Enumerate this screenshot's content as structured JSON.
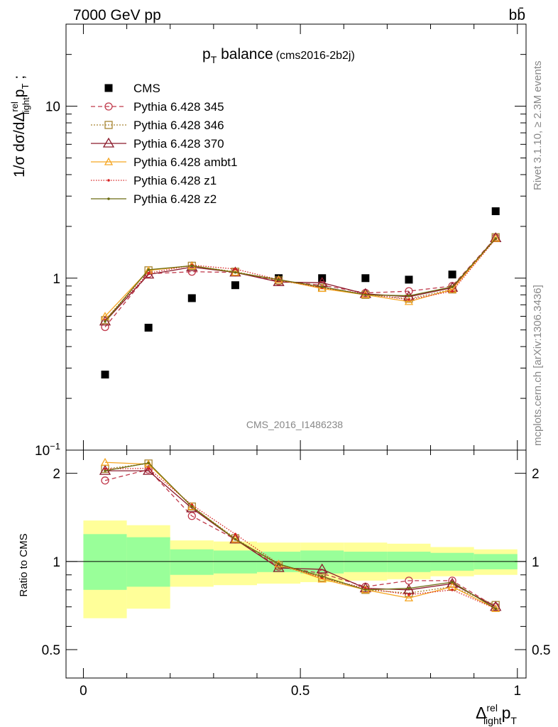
{
  "header": {
    "energy_label": "7000 GeV pp",
    "process_label": "bb̄",
    "right_side_rivet": "Rivet 3.1.10, ≥ 2.3M events",
    "right_side_mcplots": "mcplots.cern.ch [arXiv:1306.3436]"
  },
  "plot": {
    "title_main": "p",
    "title_sub": "T",
    "title_rest": " balance",
    "title_tag": "(cms2016-2b2j)",
    "watermark": "CMS_2016_I1486238",
    "ylabel_main": "1/σ dσ/dΔ",
    "ylabel_sup": "rel",
    "ylabel_sub": "light",
    "ylabel_tail": "p",
    "ylabel_tail_sub": "T",
    "ylabel_end": " ;",
    "ratio_ylabel": "Ratio to CMS",
    "xlabel_main": "Δ",
    "xlabel_sup": "rel",
    "xlabel_sub": "light",
    "xlabel_tail": "p",
    "xlabel_tail_sub": "T"
  },
  "colors": {
    "CMS": "#000000",
    "p345": "#c0394b",
    "p346": "#a88532",
    "p370": "#8b1a2b",
    "ambt1": "#f5a623",
    "z1": "#d62020",
    "z2": "#6b6b10",
    "band_inner": "#99ff99",
    "band_outer": "#ffff99"
  },
  "chart_data": {
    "type": "line",
    "x": [
      0.05,
      0.15,
      0.25,
      0.35,
      0.45,
      0.55,
      0.65,
      0.75,
      0.85,
      0.95
    ],
    "xlim": [
      -0.04,
      1.02
    ],
    "main_ylim": [
      0.1,
      30
    ],
    "main_yscale": "log",
    "main_yticks": [
      {
        "label": "10",
        "sup": "−1",
        "value": 0.1
      },
      {
        "label": "1",
        "sup": "",
        "value": 1
      },
      {
        "label": "10",
        "sup": "",
        "value": 10
      }
    ],
    "ratio_ylim": [
      0.4,
      2.4
    ],
    "ratio_yscale": "log",
    "ratio_yticks": [
      {
        "label": "0.5",
        "value": 0.5
      },
      {
        "label": "1",
        "value": 1
      },
      {
        "label": "2",
        "value": 2
      }
    ],
    "xticks": [
      {
        "label": "0",
        "value": 0
      },
      {
        "label": "0.5",
        "value": 0.5
      },
      {
        "label": "1",
        "value": 1
      }
    ],
    "legend_position": "top-left",
    "series": [
      {
        "key": "CMS",
        "name": "CMS",
        "marker": "square",
        "dash": "",
        "values": [
          0.275,
          0.515,
          0.765,
          0.91,
          1.0,
          1.0,
          1.0,
          0.98,
          1.05,
          2.45
        ]
      },
      {
        "key": "p345",
        "name": "Pythia 6.428 345",
        "marker": "circle",
        "dash": "6,4",
        "values": [
          0.52,
          1.06,
          1.09,
          1.08,
          0.96,
          0.91,
          0.82,
          0.84,
          0.9,
          1.72
        ]
      },
      {
        "key": "p346",
        "name": "Pythia 6.428 346",
        "marker": "square-open",
        "dash": "2,2",
        "values": [
          0.57,
          1.11,
          1.18,
          1.09,
          0.97,
          0.88,
          0.8,
          0.76,
          0.86,
          1.73
        ]
      },
      {
        "key": "p370",
        "name": "Pythia 6.428 370",
        "marker": "triangle-large",
        "dash": "",
        "values": [
          0.56,
          1.05,
          1.16,
          1.08,
          0.95,
          0.94,
          0.81,
          0.78,
          0.88,
          1.71
        ]
      },
      {
        "key": "ambt1",
        "name": "Pythia 6.428 ambt1",
        "marker": "triangle",
        "dash": "",
        "values": [
          0.6,
          1.11,
          1.18,
          1.08,
          0.98,
          0.87,
          0.8,
          0.73,
          0.86,
          1.7
        ]
      },
      {
        "key": "z1",
        "name": "Pythia 6.428 z1",
        "marker": "dot",
        "dash": "1.5,2",
        "values": [
          0.57,
          1.07,
          1.19,
          1.13,
          0.98,
          0.88,
          0.81,
          0.75,
          0.84,
          1.69
        ]
      },
      {
        "key": "z2",
        "name": "Pythia 6.428 z2",
        "marker": "dot",
        "dash": "",
        "values": [
          0.56,
          1.12,
          1.18,
          1.08,
          0.98,
          0.89,
          0.8,
          0.79,
          0.89,
          1.7
        ]
      }
    ],
    "ratio_series": [
      {
        "key": "p345",
        "values": [
          1.89,
          2.06,
          1.43,
          1.19,
          0.96,
          0.91,
          0.82,
          0.86,
          0.86,
          0.7
        ]
      },
      {
        "key": "p346",
        "values": [
          2.07,
          2.16,
          1.54,
          1.2,
          0.97,
          0.88,
          0.8,
          0.78,
          0.82,
          0.71
        ]
      },
      {
        "key": "p370",
        "values": [
          2.04,
          2.04,
          1.52,
          1.19,
          0.95,
          0.94,
          0.81,
          0.8,
          0.84,
          0.7
        ]
      },
      {
        "key": "ambt1",
        "values": [
          2.18,
          2.15,
          1.54,
          1.19,
          0.98,
          0.87,
          0.8,
          0.75,
          0.82,
          0.69
        ]
      },
      {
        "key": "z1",
        "values": [
          2.07,
          2.08,
          1.56,
          1.24,
          0.98,
          0.88,
          0.81,
          0.77,
          0.8,
          0.69
        ]
      },
      {
        "key": "z2",
        "values": [
          2.04,
          2.17,
          1.54,
          1.19,
          0.98,
          0.89,
          0.8,
          0.81,
          0.85,
          0.69
        ]
      }
    ],
    "bands": {
      "edges": [
        0.0,
        0.1,
        0.2,
        0.3,
        0.4,
        0.5,
        0.6,
        0.7,
        0.8,
        0.9,
        1.0
      ],
      "inner_lo": [
        0.8,
        0.82,
        0.9,
        0.91,
        0.92,
        0.91,
        0.92,
        0.92,
        0.93,
        0.94
      ],
      "inner_hi": [
        1.24,
        1.21,
        1.1,
        1.09,
        1.08,
        1.09,
        1.08,
        1.08,
        1.07,
        1.06
      ],
      "outer_lo": [
        0.64,
        0.69,
        0.82,
        0.83,
        0.84,
        0.85,
        0.86,
        0.87,
        0.89,
        0.9
      ],
      "outer_hi": [
        1.38,
        1.33,
        1.18,
        1.17,
        1.16,
        1.16,
        1.16,
        1.15,
        1.12,
        1.1
      ]
    }
  }
}
